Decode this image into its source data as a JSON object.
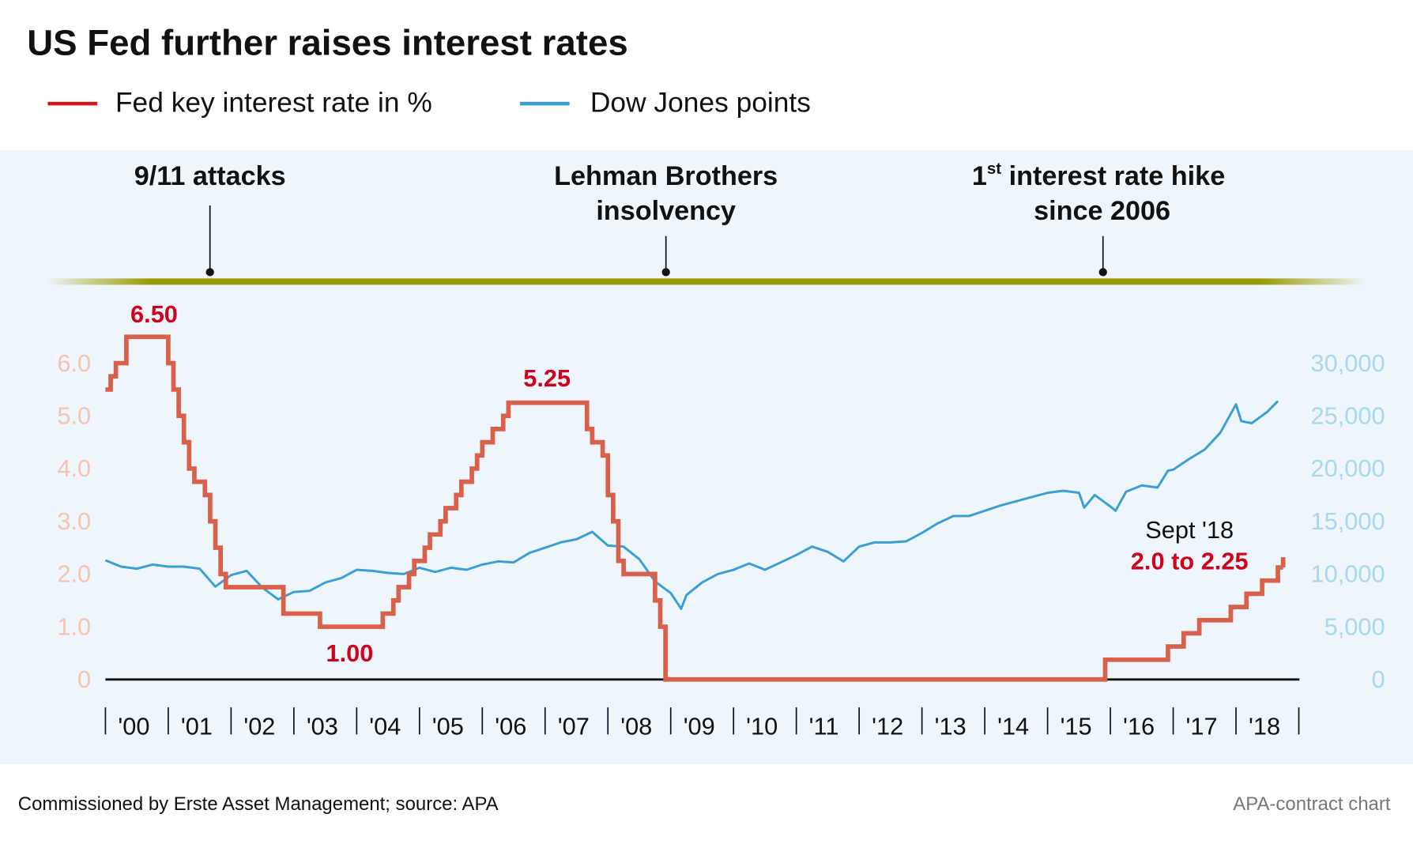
{
  "title": "US Fed further raises interest rates",
  "legend": [
    {
      "label": "Fed key interest rate in %",
      "color": "#d9604a"
    },
    {
      "label": "Dow Jones points",
      "color": "#3a9fd5"
    }
  ],
  "annotations": [
    {
      "lines": [
        "9/11 attacks"
      ],
      "date": "2001-09"
    },
    {
      "lines": [
        "Lehman Brothers",
        "insolvency"
      ],
      "date": "2008-09"
    },
    {
      "lines_sup": {
        "pre": "1",
        "sup": "st",
        "post": " interest rate hike"
      },
      "lines": [
        "since 2006"
      ],
      "date": "2015-12"
    }
  ],
  "footer": {
    "source": "Commissioned by Erste Asset Management; source: APA",
    "credit": "APA-contract chart"
  },
  "chart_data": {
    "type": "line",
    "title": "US Fed further raises interest rates",
    "grid": true,
    "legend_position": "top-left",
    "x_ticks": [
      "'00",
      "'01",
      "'02",
      "'03",
      "'04",
      "'05",
      "'06",
      "'07",
      "'08",
      "'09",
      "'10",
      "'11",
      "'12",
      "'13",
      "'14",
      "'15",
      "'16",
      "'17",
      "'18"
    ],
    "x_range": [
      "2000-01",
      "2019-01"
    ],
    "y_left": {
      "range": [
        0,
        7
      ],
      "ticks": [
        "0",
        "1.0",
        "2.0",
        "3.0",
        "4.0",
        "5.0",
        "6.0"
      ],
      "color": "#f4c4b3"
    },
    "y_right": {
      "range": [
        0,
        35000
      ],
      "ticks": [
        "0",
        "5,000",
        "10,000",
        "15,000",
        "20,000",
        "25,000",
        "30,000"
      ],
      "color": "#a8d7ee"
    },
    "data_labels": [
      {
        "text": "6.50",
        "date": "2000-09",
        "value": 6.5
      },
      {
        "text": "5.25",
        "date": "2006-12",
        "value": 5.25
      },
      {
        "text": "1.00",
        "date": "2003-12",
        "value": 1.0
      },
      {
        "text_top": "Sept '18",
        "text": "2.0 to 2.25",
        "date": "2018-09",
        "value": 2.125
      }
    ],
    "series": [
      {
        "name": "Fed key interest rate in %",
        "axis": "left",
        "color": "#d9604a",
        "step": true,
        "end": "2018-10",
        "points": [
          [
            "2000-01",
            5.5
          ],
          [
            "2000-02",
            5.75
          ],
          [
            "2000-03",
            6.0
          ],
          [
            "2000-05",
            6.5
          ],
          [
            "2001-01",
            6.0
          ],
          [
            "2001-02",
            5.5
          ],
          [
            "2001-03",
            5.0
          ],
          [
            "2001-04",
            4.5
          ],
          [
            "2001-05",
            4.0
          ],
          [
            "2001-06",
            3.75
          ],
          [
            "2001-08",
            3.5
          ],
          [
            "2001-09",
            3.0
          ],
          [
            "2001-10",
            2.5
          ],
          [
            "2001-11",
            2.0
          ],
          [
            "2001-12",
            1.75
          ],
          [
            "2002-11",
            1.25
          ],
          [
            "2003-06",
            1.0
          ],
          [
            "2004-06",
            1.25
          ],
          [
            "2004-08",
            1.5
          ],
          [
            "2004-09",
            1.75
          ],
          [
            "2004-11",
            2.0
          ],
          [
            "2004-12",
            2.25
          ],
          [
            "2005-02",
            2.5
          ],
          [
            "2005-03",
            2.75
          ],
          [
            "2005-05",
            3.0
          ],
          [
            "2005-06",
            3.25
          ],
          [
            "2005-08",
            3.5
          ],
          [
            "2005-09",
            3.75
          ],
          [
            "2005-11",
            4.0
          ],
          [
            "2005-12",
            4.25
          ],
          [
            "2006-01",
            4.5
          ],
          [
            "2006-03",
            4.75
          ],
          [
            "2006-05",
            5.0
          ],
          [
            "2006-06",
            5.25
          ],
          [
            "2007-09",
            4.75
          ],
          [
            "2007-10",
            4.5
          ],
          [
            "2007-12",
            4.25
          ],
          [
            "2008-01",
            3.5
          ],
          [
            "2008-02",
            3.0
          ],
          [
            "2008-03",
            2.25
          ],
          [
            "2008-04",
            2.0
          ],
          [
            "2008-10",
            1.5
          ],
          [
            "2008-11",
            1.0
          ],
          [
            "2008-12",
            0.0
          ],
          [
            "2015-12",
            0.375
          ],
          [
            "2016-12",
            0.625
          ],
          [
            "2017-03",
            0.875
          ],
          [
            "2017-06",
            1.125
          ],
          [
            "2017-12",
            1.375
          ],
          [
            "2018-03",
            1.625
          ],
          [
            "2018-06",
            1.875
          ],
          [
            "2018-09",
            2.125
          ]
        ]
      },
      {
        "name": "Dow Jones points",
        "axis": "right",
        "color": "#3a9fd5",
        "step": false,
        "points": [
          [
            "2000-01",
            11300
          ],
          [
            "2000-04",
            10700
          ],
          [
            "2000-07",
            10500
          ],
          [
            "2000-10",
            10900
          ],
          [
            "2001-01",
            10700
          ],
          [
            "2001-04",
            10700
          ],
          [
            "2001-07",
            10500
          ],
          [
            "2001-10",
            8800
          ],
          [
            "2002-01",
            9900
          ],
          [
            "2002-04",
            10300
          ],
          [
            "2002-07",
            8700
          ],
          [
            "2002-10",
            7600
          ],
          [
            "2003-01",
            8300
          ],
          [
            "2003-04",
            8400
          ],
          [
            "2003-07",
            9200
          ],
          [
            "2003-10",
            9600
          ],
          [
            "2004-01",
            10400
          ],
          [
            "2004-04",
            10300
          ],
          [
            "2004-07",
            10100
          ],
          [
            "2004-10",
            10000
          ],
          [
            "2005-01",
            10600
          ],
          [
            "2005-04",
            10200
          ],
          [
            "2005-07",
            10600
          ],
          [
            "2005-10",
            10400
          ],
          [
            "2006-01",
            10900
          ],
          [
            "2006-04",
            11200
          ],
          [
            "2006-07",
            11100
          ],
          [
            "2006-10",
            12000
          ],
          [
            "2007-01",
            12500
          ],
          [
            "2007-04",
            13000
          ],
          [
            "2007-07",
            13300
          ],
          [
            "2007-10",
            14000
          ],
          [
            "2008-01",
            12700
          ],
          [
            "2008-04",
            12600
          ],
          [
            "2008-07",
            11400
          ],
          [
            "2008-10",
            9300
          ],
          [
            "2009-01",
            8200
          ],
          [
            "2009-03",
            6700
          ],
          [
            "2009-04",
            8000
          ],
          [
            "2009-07",
            9200
          ],
          [
            "2009-10",
            10000
          ],
          [
            "2010-01",
            10400
          ],
          [
            "2010-04",
            11000
          ],
          [
            "2010-07",
            10400
          ],
          [
            "2010-10",
            11100
          ],
          [
            "2011-01",
            11800
          ],
          [
            "2011-04",
            12600
          ],
          [
            "2011-07",
            12100
          ],
          [
            "2011-10",
            11200
          ],
          [
            "2012-01",
            12600
          ],
          [
            "2012-04",
            13000
          ],
          [
            "2012-07",
            13000
          ],
          [
            "2012-10",
            13100
          ],
          [
            "2013-01",
            13900
          ],
          [
            "2013-04",
            14800
          ],
          [
            "2013-07",
            15500
          ],
          [
            "2013-10",
            15500
          ],
          [
            "2014-01",
            16000
          ],
          [
            "2014-04",
            16500
          ],
          [
            "2014-07",
            16900
          ],
          [
            "2014-10",
            17300
          ],
          [
            "2015-01",
            17700
          ],
          [
            "2015-04",
            17900
          ],
          [
            "2015-07",
            17700
          ],
          [
            "2015-08",
            16300
          ],
          [
            "2015-10",
            17500
          ],
          [
            "2016-01",
            16400
          ],
          [
            "2016-02",
            16000
          ],
          [
            "2016-04",
            17800
          ],
          [
            "2016-07",
            18400
          ],
          [
            "2016-10",
            18200
          ],
          [
            "2016-12",
            19800
          ],
          [
            "2017-01",
            19900
          ],
          [
            "2017-04",
            20900
          ],
          [
            "2017-07",
            21800
          ],
          [
            "2017-10",
            23400
          ],
          [
            "2018-01",
            26100
          ],
          [
            "2018-02",
            24500
          ],
          [
            "2018-04",
            24300
          ],
          [
            "2018-07",
            25400
          ],
          [
            "2018-09",
            26400
          ]
        ]
      }
    ]
  }
}
